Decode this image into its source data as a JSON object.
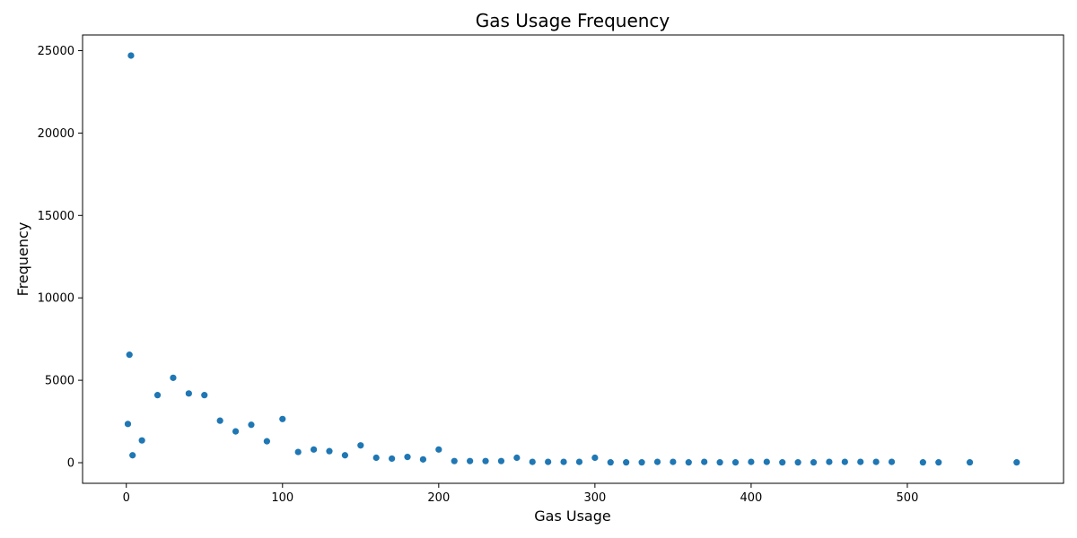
{
  "chart_data": {
    "type": "scatter",
    "title": "Gas Usage Frequency",
    "xlabel": "Gas Usage",
    "ylabel": "Frequency",
    "xlim": [
      -28,
      600
    ],
    "ylim": [
      -1250,
      25950
    ],
    "xticks": [
      0,
      100,
      200,
      300,
      400,
      500
    ],
    "yticks": [
      0,
      5000,
      10000,
      15000,
      20000,
      25000
    ],
    "grid": false,
    "marker_color": "#1f77b4",
    "series": [
      {
        "points": [
          [
            1,
            2350
          ],
          [
            2,
            6550
          ],
          [
            3,
            24700
          ],
          [
            4,
            450
          ],
          [
            10,
            1350
          ],
          [
            20,
            4100
          ],
          [
            30,
            5150
          ],
          [
            40,
            4200
          ],
          [
            50,
            4100
          ],
          [
            60,
            2550
          ],
          [
            70,
            1900
          ],
          [
            80,
            2300
          ],
          [
            90,
            1300
          ],
          [
            100,
            2650
          ],
          [
            110,
            650
          ],
          [
            120,
            800
          ],
          [
            130,
            700
          ],
          [
            140,
            450
          ],
          [
            150,
            1050
          ],
          [
            160,
            300
          ],
          [
            170,
            250
          ],
          [
            180,
            350
          ],
          [
            190,
            200
          ],
          [
            200,
            800
          ],
          [
            210,
            100
          ],
          [
            220,
            100
          ],
          [
            230,
            100
          ],
          [
            240,
            100
          ],
          [
            250,
            300
          ],
          [
            260,
            50
          ],
          [
            270,
            50
          ],
          [
            280,
            50
          ],
          [
            290,
            50
          ],
          [
            300,
            300
          ],
          [
            310,
            20
          ],
          [
            320,
            20
          ],
          [
            330,
            20
          ],
          [
            340,
            50
          ],
          [
            350,
            50
          ],
          [
            360,
            20
          ],
          [
            370,
            50
          ],
          [
            380,
            20
          ],
          [
            390,
            20
          ],
          [
            400,
            50
          ],
          [
            410,
            50
          ],
          [
            420,
            20
          ],
          [
            430,
            20
          ],
          [
            440,
            20
          ],
          [
            450,
            50
          ],
          [
            460,
            50
          ],
          [
            470,
            50
          ],
          [
            480,
            50
          ],
          [
            490,
            50
          ],
          [
            510,
            20
          ],
          [
            520,
            20
          ],
          [
            540,
            20
          ],
          [
            570,
            20
          ]
        ]
      }
    ]
  }
}
